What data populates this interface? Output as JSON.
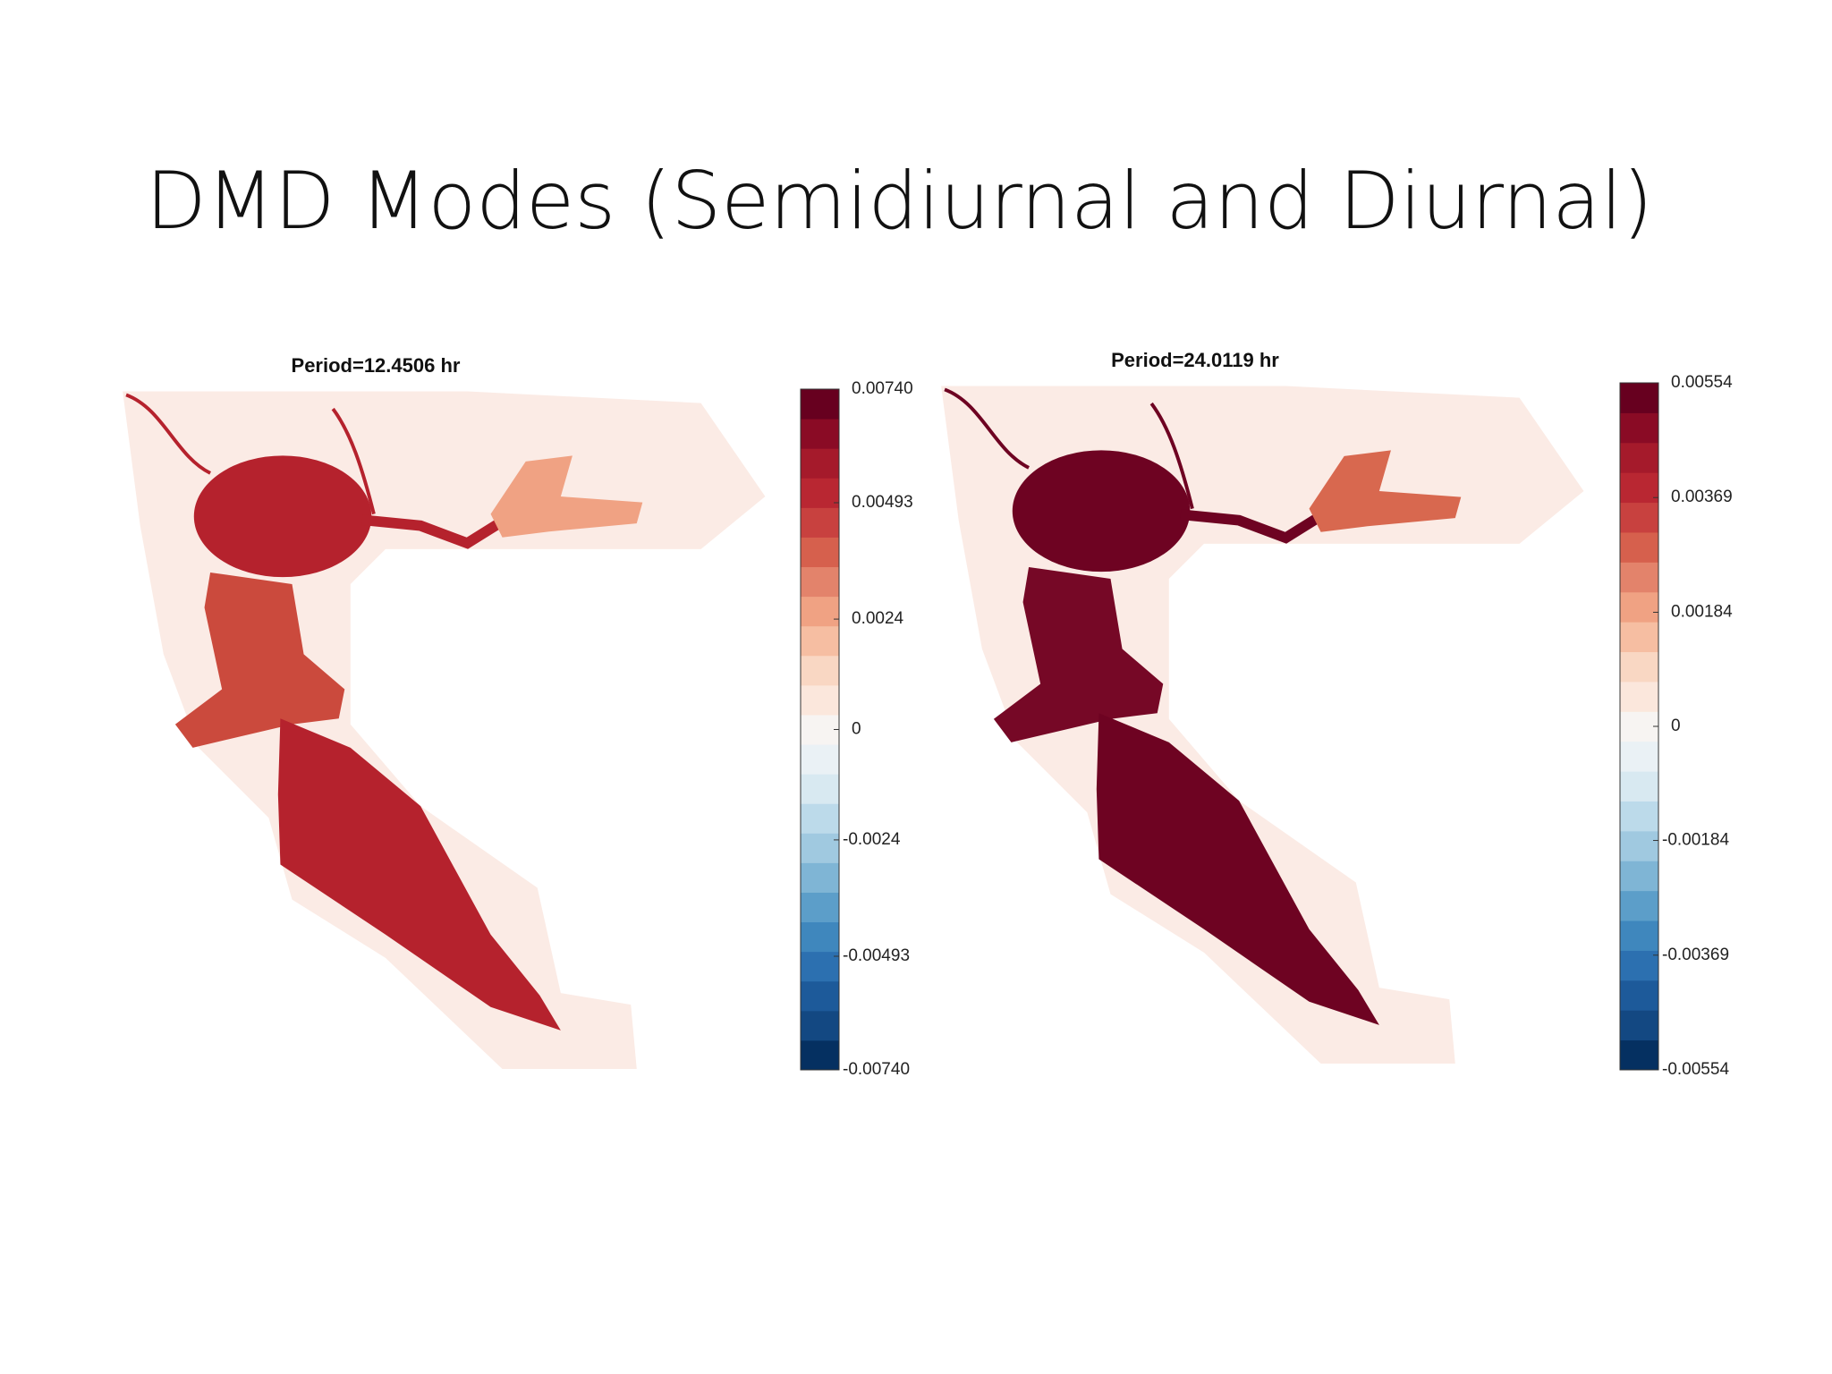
{
  "header": {
    "title": "DMD Modes (Semidiurnal and Diurnal)"
  },
  "chart_data": [
    {
      "type": "heatmap",
      "title": "Period=12.4506 hr",
      "clim": [
        -0.0074,
        0.0074
      ],
      "cticks": [
        {
          "value": -0.0074,
          "label": "-0.00740"
        },
        -0.00493,
        -0.0024,
        0,
        0.0024,
        0.00493,
        {
          "value": 0.0074,
          "label": "0.00740"
        }
      ],
      "colors": [
        "#053061",
        "#134882",
        "#1d5a9a",
        "#2c70b0",
        "#3f87bd",
        "#5c9ec9",
        "#7fb5d5",
        "#a0c9e0",
        "#bcdaea",
        "#d8e9f1",
        "#eaf1f5",
        "#f7f4f2",
        "#fbe7dc",
        "#f9d7c3",
        "#f6bea2",
        "#f0a283",
        "#e3836b",
        "#d6604d",
        "#c8413f",
        "#b92732",
        "#a51a2b",
        "#8a0b25",
        "#67001f"
      ]
    },
    {
      "type": "heatmap",
      "title": "Period=24.0119 hr",
      "clim": [
        -0.00554,
        0.00554
      ],
      "cticks": [
        -0.00554,
        -0.00369,
        -0.00184,
        0,
        0.00184,
        0.00369,
        0.00554
      ],
      "colors": [
        "#053061",
        "#134882",
        "#1d5a9a",
        "#2c70b0",
        "#3f87bd",
        "#5c9ec9",
        "#7fb5d5",
        "#a0c9e0",
        "#bcdaea",
        "#d8e9f1",
        "#eaf1f5",
        "#f7f4f2",
        "#fbe7dc",
        "#f9d7c3",
        "#f6bea2",
        "#f0a283",
        "#e3836b",
        "#d6604d",
        "#c8413f",
        "#b92732",
        "#a51a2b",
        "#8a0b25",
        "#67001f"
      ]
    }
  ]
}
